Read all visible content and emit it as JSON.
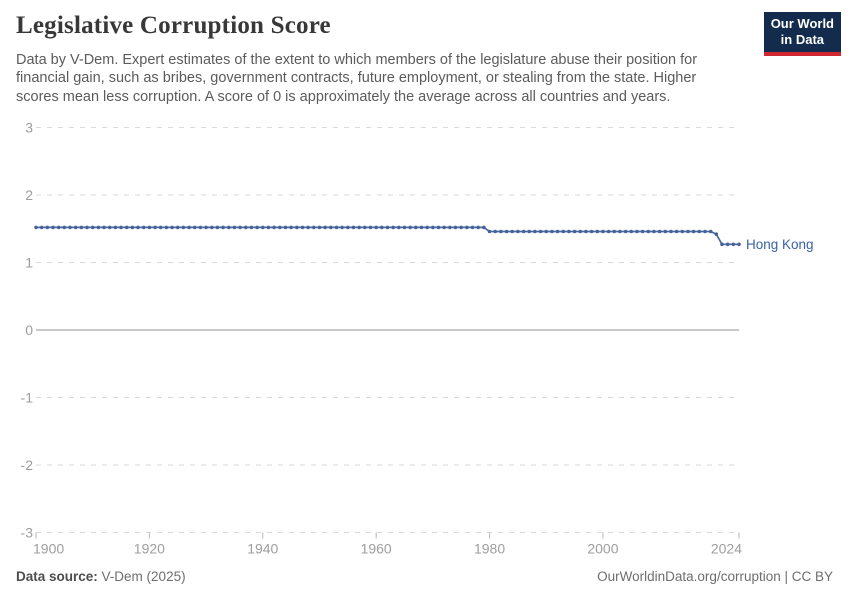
{
  "header": {
    "title": "Legislative Corruption Score",
    "subtitle": "Data by V-Dem. Expert estimates of the extent to which members of the legislature abuse their position for financial gain, such as bribes, government contracts, future employment, or stealing from the state. Higher scores mean less corruption. A score of 0 is approximately the average across all countries and years."
  },
  "logo": {
    "line1": "Our World",
    "line2": "in Data",
    "bg_color": "#132b4d",
    "accent_color": "#d12733"
  },
  "chart_data": {
    "type": "line",
    "title": "Legislative Corruption Score",
    "xlabel": "",
    "ylabel": "",
    "xlim": [
      1900,
      2024
    ],
    "ylim": [
      -3,
      3
    ],
    "x_ticks": [
      1900,
      1920,
      1940,
      1960,
      1980,
      2000,
      2024
    ],
    "y_ticks": [
      3,
      2,
      1,
      0,
      -1,
      -2,
      -3
    ],
    "grid": "horizontal-dashed",
    "legend_position": "line-end-label",
    "marker": "point-per-year",
    "series": [
      {
        "name": "Hong Kong",
        "color": "#4c6a9c",
        "label_color": "#3a62a5",
        "x_start": 1900,
        "x_step": 1,
        "values": [
          1.52,
          1.52,
          1.52,
          1.52,
          1.52,
          1.52,
          1.52,
          1.52,
          1.52,
          1.52,
          1.52,
          1.52,
          1.52,
          1.52,
          1.52,
          1.52,
          1.52,
          1.52,
          1.52,
          1.52,
          1.52,
          1.52,
          1.52,
          1.52,
          1.52,
          1.52,
          1.52,
          1.52,
          1.52,
          1.52,
          1.52,
          1.52,
          1.52,
          1.52,
          1.52,
          1.52,
          1.52,
          1.52,
          1.52,
          1.52,
          1.52,
          1.52,
          1.52,
          1.52,
          1.52,
          1.52,
          1.52,
          1.52,
          1.52,
          1.52,
          1.52,
          1.52,
          1.52,
          1.52,
          1.52,
          1.52,
          1.52,
          1.52,
          1.52,
          1.52,
          1.52,
          1.52,
          1.52,
          1.52,
          1.52,
          1.52,
          1.52,
          1.52,
          1.52,
          1.52,
          1.52,
          1.52,
          1.52,
          1.52,
          1.52,
          1.52,
          1.52,
          1.52,
          1.52,
          1.52,
          1.46,
          1.46,
          1.46,
          1.46,
          1.46,
          1.46,
          1.46,
          1.46,
          1.46,
          1.46,
          1.46,
          1.46,
          1.46,
          1.46,
          1.46,
          1.46,
          1.46,
          1.46,
          1.46,
          1.46,
          1.46,
          1.46,
          1.46,
          1.46,
          1.46,
          1.46,
          1.46,
          1.46,
          1.46,
          1.46,
          1.46,
          1.46,
          1.46,
          1.46,
          1.46,
          1.46,
          1.46,
          1.46,
          1.46,
          1.46,
          1.42,
          1.27,
          1.27,
          1.27,
          1.27
        ]
      }
    ]
  },
  "footer": {
    "source_label": "Data source:",
    "source_value": "V-Dem (2025)",
    "link": "OurWorldinData.org/corruption | CC BY"
  },
  "colors": {
    "line": "#4c6a9c",
    "point": "#44629b",
    "entity_label": "#3a62a5",
    "grid": "#d9d9d9",
    "zero_line": "#a6a6a6",
    "tick": "#b8b8b8",
    "axis_text": "#9e9e9e",
    "title_text": "#383838",
    "subtitle_text": "#5b5b5b"
  }
}
